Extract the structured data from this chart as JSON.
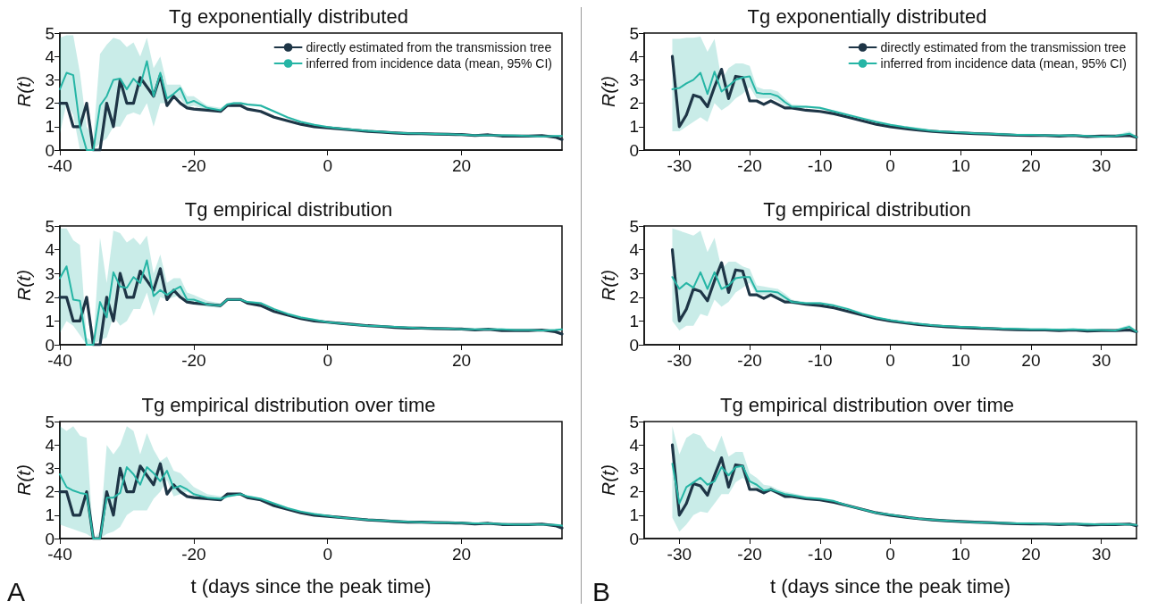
{
  "chart_data": [
    {
      "type": "line",
      "title": "Tg exponentially distributed",
      "ylabel": "R(t)",
      "legend": "top right",
      "x": [
        -40,
        -39,
        -38,
        -37,
        -36,
        -35,
        -34,
        -33,
        -32,
        -31,
        -30,
        -29,
        -28,
        -27,
        -26,
        -25,
        -24,
        -23,
        -22,
        -21,
        -20,
        -18,
        -16,
        -15,
        -14,
        -13,
        -12,
        -10,
        -8,
        -6,
        -4,
        -2,
        0,
        2,
        4,
        6,
        8,
        10,
        12,
        14,
        16,
        18,
        20,
        22,
        24,
        26,
        28,
        30,
        32,
        34,
        35
      ],
      "xlim": [
        -40,
        35
      ],
      "xticks": [
        -40,
        -20,
        0,
        20
      ],
      "ylim": [
        0,
        5
      ],
      "yticks": [
        0,
        1,
        2,
        3,
        4,
        5
      ],
      "series": [
        {
          "name": "directly estimated from the transmission tree",
          "color": "#1e3546",
          "values": [
            2,
            2,
            1,
            1,
            2,
            0,
            0,
            2,
            1,
            3,
            2,
            2,
            3.1,
            2.7,
            2.3,
            3.2,
            1.9,
            2.3,
            2.0,
            1.8,
            1.75,
            1.7,
            1.65,
            1.9,
            1.9,
            1.9,
            1.75,
            1.65,
            1.4,
            1.25,
            1.1,
            1.0,
            0.95,
            0.9,
            0.85,
            0.8,
            0.77,
            0.73,
            0.7,
            0.7,
            0.68,
            0.67,
            0.66,
            0.62,
            0.65,
            0.6,
            0.6,
            0.6,
            0.62,
            0.55,
            0.45
          ]
        },
        {
          "name": "inferred from incidence data (mean, 95% CI)",
          "color": "#26b5a5",
          "values": [
            2.6,
            3.3,
            3.2,
            1.0,
            0,
            0,
            1.9,
            2.3,
            3.0,
            3.05,
            2.6,
            3.05,
            2.75,
            3.8,
            2.3,
            3.3,
            2.2,
            2.4,
            2.65,
            2.0,
            2.1,
            1.8,
            1.7,
            1.95,
            2.0,
            2.0,
            1.95,
            1.9,
            1.65,
            1.4,
            1.2,
            1.08,
            0.98,
            0.92,
            0.87,
            0.82,
            0.78,
            0.74,
            0.72,
            0.71,
            0.69,
            0.68,
            0.66,
            0.63,
            0.63,
            0.63,
            0.62,
            0.6,
            0.58,
            0.6,
            0.6
          ],
          "lower": [
            0.7,
            2.0,
            1.5,
            0,
            0,
            0,
            0.3,
            0.5,
            1.0,
            1.0,
            1.5,
            1.6,
            1.5,
            2.0,
            1.0,
            2.0,
            2.0,
            2.2,
            2.2,
            1.8,
            1.9,
            1.7,
            1.6,
            1.9,
            1.95,
            1.95,
            1.9,
            1.85,
            1.6,
            1.35,
            1.15,
            1.03,
            0.93,
            0.87,
            0.82,
            0.77,
            0.73,
            0.69,
            0.67,
            0.66,
            0.64,
            0.63,
            0.61,
            0.58,
            0.58,
            0.58,
            0.57,
            0.55,
            0.53,
            0.55,
            0.55
          ],
          "upper": [
            4.8,
            4.9,
            4.9,
            3.3,
            1.0,
            0.5,
            4.1,
            4.5,
            4.8,
            4.7,
            4.4,
            4.6,
            4.0,
            4.8,
            3.5,
            4.0,
            2.8,
            2.8,
            2.8,
            2.3,
            2.3,
            1.9,
            1.8,
            2.0,
            2.05,
            2.05,
            2.0,
            1.95,
            1.7,
            1.45,
            1.25,
            1.13,
            1.03,
            0.97,
            0.92,
            0.87,
            0.83,
            0.79,
            0.77,
            0.76,
            0.74,
            0.73,
            0.71,
            0.68,
            0.68,
            0.68,
            0.67,
            0.65,
            0.63,
            0.65,
            0.65
          ]
        }
      ]
    },
    {
      "type": "line",
      "title": "Tg empirical distribution",
      "ylabel": "R(t)",
      "x": [
        -40,
        -39,
        -38,
        -37,
        -36,
        -35,
        -34,
        -33,
        -32,
        -31,
        -30,
        -29,
        -28,
        -27,
        -26,
        -25,
        -24,
        -23,
        -22,
        -21,
        -20,
        -18,
        -16,
        -15,
        -14,
        -13,
        -12,
        -10,
        -8,
        -6,
        -4,
        -2,
        0,
        2,
        4,
        6,
        8,
        10,
        12,
        14,
        16,
        18,
        20,
        22,
        24,
        26,
        28,
        30,
        32,
        34,
        35
      ],
      "xlim": [
        -40,
        35
      ],
      "xticks": [
        -40,
        -20,
        0,
        20
      ],
      "ylim": [
        0,
        5
      ],
      "yticks": [
        0,
        1,
        2,
        3,
        4,
        5
      ],
      "series": [
        {
          "color": "#1e3546",
          "values": [
            2,
            2,
            1,
            1,
            2,
            0,
            0,
            2,
            1,
            3,
            2,
            2,
            3.1,
            2.7,
            2.3,
            3.2,
            1.9,
            2.3,
            2.0,
            1.8,
            1.75,
            1.7,
            1.65,
            1.9,
            1.9,
            1.9,
            1.75,
            1.65,
            1.4,
            1.25,
            1.1,
            1.0,
            0.95,
            0.9,
            0.85,
            0.8,
            0.77,
            0.73,
            0.7,
            0.7,
            0.68,
            0.67,
            0.66,
            0.62,
            0.65,
            0.6,
            0.6,
            0.6,
            0.62,
            0.55,
            0.45
          ]
        },
        {
          "color": "#26b5a5",
          "values": [
            2.8,
            3.3,
            1.9,
            1.85,
            0,
            0,
            1.8,
            1.15,
            3.05,
            2.45,
            2.4,
            2.85,
            2.6,
            3.55,
            2.05,
            2.3,
            2.1,
            2.3,
            2.45,
            1.9,
            1.9,
            1.7,
            1.65,
            1.9,
            1.9,
            1.9,
            1.8,
            1.75,
            1.5,
            1.3,
            1.15,
            1.05,
            0.95,
            0.9,
            0.85,
            0.8,
            0.78,
            0.75,
            0.72,
            0.7,
            0.7,
            0.68,
            0.66,
            0.65,
            0.65,
            0.65,
            0.62,
            0.62,
            0.6,
            0.62,
            0.65
          ],
          "lower": [
            0.5,
            1.0,
            0.8,
            0.4,
            0,
            0,
            0.2,
            0.3,
            1.2,
            0.8,
            1.0,
            1.5,
            1.5,
            2.2,
            1.2,
            2.0,
            1.9,
            2.0,
            2.1,
            1.8,
            1.7,
            1.6,
            1.55,
            1.85,
            1.85,
            1.85,
            1.75,
            1.7,
            1.45,
            1.25,
            1.1,
            1.0,
            0.9,
            0.85,
            0.8,
            0.75,
            0.73,
            0.7,
            0.67,
            0.65,
            0.65,
            0.63,
            0.61,
            0.6,
            0.6,
            0.6,
            0.57,
            0.57,
            0.55,
            0.57,
            0.6
          ],
          "upper": [
            4.9,
            4.9,
            4.4,
            4.2,
            0.3,
            0.1,
            4.5,
            2.6,
            4.8,
            4.7,
            4.3,
            4.5,
            4.2,
            4.6,
            3.0,
            3.8,
            2.6,
            2.8,
            2.8,
            2.2,
            2.1,
            1.85,
            1.75,
            1.95,
            1.95,
            1.95,
            1.85,
            1.8,
            1.55,
            1.35,
            1.2,
            1.1,
            1.0,
            0.95,
            0.9,
            0.85,
            0.83,
            0.8,
            0.77,
            0.75,
            0.75,
            0.73,
            0.71,
            0.7,
            0.7,
            0.7,
            0.67,
            0.67,
            0.65,
            0.67,
            0.7
          ]
        }
      ]
    },
    {
      "type": "line",
      "title": "Tg empirical distribution over time",
      "ylabel": "R(t)",
      "xlabel": "t (days since the peak time)",
      "annotations": [
        "A"
      ],
      "x": [
        -40,
        -39,
        -38,
        -37,
        -36,
        -35,
        -34,
        -33,
        -32,
        -31,
        -30,
        -29,
        -28,
        -27,
        -26,
        -25,
        -24,
        -23,
        -22,
        -21,
        -20,
        -18,
        -16,
        -15,
        -14,
        -13,
        -12,
        -10,
        -8,
        -6,
        -4,
        -2,
        0,
        2,
        4,
        6,
        8,
        10,
        12,
        14,
        16,
        18,
        20,
        22,
        24,
        26,
        28,
        30,
        32,
        34,
        35
      ],
      "xlim": [
        -40,
        35
      ],
      "xticks": [
        -40,
        -20,
        0,
        20
      ],
      "ylim": [
        0,
        5
      ],
      "yticks": [
        0,
        1,
        2,
        3,
        4,
        5
      ],
      "series": [
        {
          "color": "#1e3546",
          "values": [
            2,
            2,
            1,
            1,
            2,
            0,
            0,
            2,
            1,
            3,
            2,
            2,
            3.1,
            2.7,
            2.3,
            3.2,
            1.9,
            2.3,
            2.0,
            1.8,
            1.75,
            1.7,
            1.65,
            1.9,
            1.9,
            1.9,
            1.75,
            1.65,
            1.4,
            1.25,
            1.1,
            1.0,
            0.95,
            0.9,
            0.85,
            0.8,
            0.77,
            0.73,
            0.7,
            0.7,
            0.68,
            0.67,
            0.66,
            0.62,
            0.65,
            0.6,
            0.6,
            0.6,
            0.62,
            0.55,
            0.45
          ]
        },
        {
          "color": "#26b5a5",
          "values": [
            2.75,
            2.2,
            2.05,
            1.95,
            1.9,
            0,
            0,
            1.75,
            1.75,
            1.95,
            3.05,
            2.75,
            2.3,
            3.05,
            2.8,
            2.45,
            2.9,
            2.15,
            2.25,
            2.1,
            1.9,
            1.75,
            1.7,
            1.8,
            1.85,
            1.9,
            1.8,
            1.7,
            1.5,
            1.3,
            1.15,
            1.05,
            0.97,
            0.9,
            0.85,
            0.8,
            0.77,
            0.74,
            0.72,
            0.7,
            0.69,
            0.68,
            0.67,
            0.65,
            0.65,
            0.62,
            0.6,
            0.6,
            0.6,
            0.58,
            0.55
          ],
          "lower": [
            0.6,
            0.5,
            0.4,
            0.3,
            0.2,
            0,
            0,
            0.2,
            0.3,
            0.5,
            1.0,
            1.2,
            1.2,
            1.2,
            1.7,
            2.0,
            2.5,
            1.8,
            1.9,
            2.0,
            1.8,
            1.65,
            1.6,
            1.75,
            1.8,
            1.85,
            1.75,
            1.65,
            1.45,
            1.25,
            1.1,
            1.0,
            0.92,
            0.85,
            0.8,
            0.75,
            0.72,
            0.69,
            0.67,
            0.65,
            0.64,
            0.63,
            0.62,
            0.6,
            0.6,
            0.57,
            0.55,
            0.55,
            0.55,
            0.53,
            0.5
          ],
          "upper": [
            4.8,
            4.6,
            4.8,
            4.4,
            4.3,
            0,
            0.3,
            4.0,
            3.6,
            4.0,
            4.8,
            4.6,
            3.6,
            4.5,
            3.8,
            3.3,
            3.5,
            2.9,
            2.8,
            2.5,
            2.2,
            1.9,
            1.8,
            1.85,
            1.9,
            1.95,
            1.85,
            1.75,
            1.55,
            1.35,
            1.2,
            1.1,
            1.02,
            0.95,
            0.9,
            0.85,
            0.82,
            0.79,
            0.77,
            0.75,
            0.74,
            0.73,
            0.72,
            0.7,
            0.7,
            0.67,
            0.65,
            0.65,
            0.65,
            0.63,
            0.6
          ]
        }
      ]
    },
    {
      "type": "line",
      "title": "Tg exponentially distributed",
      "ylabel": "R(t)",
      "legend": "top right",
      "x": [
        -31,
        -30,
        -29,
        -28,
        -27,
        -26,
        -25,
        -24,
        -23,
        -22,
        -21,
        -20,
        -19,
        -18,
        -17,
        -16,
        -15,
        -14,
        -12,
        -10,
        -8,
        -6,
        -4,
        -2,
        0,
        2,
        4,
        6,
        8,
        10,
        12,
        14,
        16,
        18,
        20,
        22,
        24,
        26,
        28,
        30,
        32,
        34,
        35
      ],
      "xlim": [
        -35,
        35
      ],
      "xticks": [
        -30,
        -20,
        -10,
        0,
        10,
        20,
        30
      ],
      "ylim": [
        0,
        5
      ],
      "yticks": [
        0,
        1,
        2,
        3,
        4,
        5
      ],
      "series": [
        {
          "name": "directly estimated from the transmission tree",
          "color": "#1e3546",
          "values": [
            4.0,
            1.0,
            1.5,
            2.35,
            2.25,
            1.85,
            2.7,
            3.45,
            2.2,
            3.15,
            3.1,
            2.1,
            2.1,
            1.95,
            2.1,
            1.95,
            1.8,
            1.8,
            1.7,
            1.65,
            1.55,
            1.4,
            1.25,
            1.1,
            1.0,
            0.92,
            0.85,
            0.8,
            0.76,
            0.73,
            0.7,
            0.68,
            0.65,
            0.63,
            0.62,
            0.62,
            0.6,
            0.62,
            0.58,
            0.6,
            0.6,
            0.62,
            0.55
          ]
        },
        {
          "name": "inferred from incidence data (mean, 95% CI)",
          "color": "#26b5a5",
          "values": [
            2.6,
            2.65,
            2.85,
            3.0,
            3.3,
            2.4,
            3.35,
            2.5,
            2.75,
            3.0,
            3.1,
            3.15,
            2.45,
            2.4,
            2.4,
            2.3,
            2.05,
            1.85,
            1.85,
            1.8,
            1.65,
            1.5,
            1.35,
            1.2,
            1.08,
            0.98,
            0.9,
            0.82,
            0.78,
            0.75,
            0.72,
            0.7,
            0.68,
            0.65,
            0.65,
            0.63,
            0.62,
            0.63,
            0.6,
            0.57,
            0.6,
            0.7,
            0.55
          ],
          "lower": [
            0.8,
            0.8,
            1.0,
            1.2,
            1.4,
            1.2,
            2.0,
            1.7,
            1.9,
            2.2,
            2.4,
            2.7,
            2.2,
            2.2,
            2.2,
            2.1,
            1.9,
            1.75,
            1.8,
            1.75,
            1.6,
            1.45,
            1.3,
            1.15,
            1.03,
            0.93,
            0.85,
            0.77,
            0.73,
            0.7,
            0.67,
            0.65,
            0.63,
            0.6,
            0.6,
            0.58,
            0.57,
            0.58,
            0.55,
            0.52,
            0.55,
            0.6,
            0.5
          ],
          "upper": [
            4.75,
            4.75,
            4.8,
            4.8,
            4.85,
            4.2,
            4.75,
            3.0,
            3.5,
            3.7,
            3.7,
            3.6,
            2.7,
            2.6,
            2.6,
            2.5,
            2.2,
            1.95,
            1.9,
            1.85,
            1.7,
            1.55,
            1.4,
            1.25,
            1.13,
            1.03,
            0.95,
            0.87,
            0.83,
            0.8,
            0.77,
            0.75,
            0.73,
            0.7,
            0.7,
            0.68,
            0.67,
            0.68,
            0.65,
            0.62,
            0.65,
            0.8,
            0.6
          ]
        }
      ]
    },
    {
      "type": "line",
      "title": "Tg empirical distribution",
      "ylabel": "R(t)",
      "x": [
        -31,
        -30,
        -29,
        -28,
        -27,
        -26,
        -25,
        -24,
        -23,
        -22,
        -21,
        -20,
        -19,
        -18,
        -17,
        -16,
        -15,
        -14,
        -12,
        -10,
        -8,
        -6,
        -4,
        -2,
        0,
        2,
        4,
        6,
        8,
        10,
        12,
        14,
        16,
        18,
        20,
        22,
        24,
        26,
        28,
        30,
        32,
        34,
        35
      ],
      "xlim": [
        -35,
        35
      ],
      "xticks": [
        -30,
        -20,
        -10,
        0,
        10,
        20,
        30
      ],
      "ylim": [
        0,
        5
      ],
      "yticks": [
        0,
        1,
        2,
        3,
        4,
        5
      ],
      "series": [
        {
          "color": "#1e3546",
          "values": [
            4.0,
            1.0,
            1.5,
            2.35,
            2.25,
            1.85,
            2.7,
            3.45,
            2.2,
            3.15,
            3.1,
            2.1,
            2.1,
            1.95,
            2.1,
            1.95,
            1.8,
            1.8,
            1.7,
            1.65,
            1.55,
            1.4,
            1.25,
            1.1,
            1.0,
            0.92,
            0.85,
            0.8,
            0.76,
            0.73,
            0.7,
            0.68,
            0.65,
            0.63,
            0.62,
            0.62,
            0.6,
            0.62,
            0.58,
            0.6,
            0.6,
            0.62,
            0.55
          ]
        },
        {
          "color": "#26b5a5",
          "values": [
            2.85,
            2.35,
            2.6,
            2.4,
            3.05,
            2.35,
            3.05,
            2.35,
            2.5,
            2.8,
            2.85,
            2.85,
            2.25,
            2.25,
            2.25,
            2.2,
            2.0,
            1.8,
            1.75,
            1.75,
            1.65,
            1.5,
            1.3,
            1.15,
            1.03,
            0.95,
            0.88,
            0.82,
            0.78,
            0.75,
            0.73,
            0.7,
            0.68,
            0.67,
            0.65,
            0.65,
            0.63,
            0.65,
            0.62,
            0.62,
            0.6,
            0.75,
            0.55
          ],
          "lower": [
            1.0,
            0.6,
            0.8,
            0.8,
            1.3,
            1.2,
            1.9,
            1.6,
            1.8,
            2.2,
            2.4,
            2.6,
            2.1,
            2.1,
            2.1,
            2.0,
            1.85,
            1.7,
            1.7,
            1.7,
            1.6,
            1.45,
            1.25,
            1.1,
            0.98,
            0.9,
            0.83,
            0.77,
            0.73,
            0.7,
            0.68,
            0.65,
            0.63,
            0.62,
            0.6,
            0.6,
            0.58,
            0.6,
            0.57,
            0.57,
            0.55,
            0.65,
            0.5
          ],
          "upper": [
            4.9,
            4.8,
            4.7,
            4.6,
            4.8,
            3.9,
            4.5,
            3.2,
            3.5,
            3.5,
            3.3,
            3.2,
            2.5,
            2.45,
            2.4,
            2.35,
            2.15,
            1.9,
            1.8,
            1.8,
            1.7,
            1.55,
            1.35,
            1.2,
            1.08,
            1.0,
            0.93,
            0.87,
            0.83,
            0.8,
            0.78,
            0.75,
            0.73,
            0.72,
            0.7,
            0.7,
            0.68,
            0.7,
            0.67,
            0.67,
            0.65,
            0.85,
            0.6
          ]
        }
      ]
    },
    {
      "type": "line",
      "title": "Tg empirical distribution over time",
      "ylabel": "R(t)",
      "xlabel": "t (days since the peak time)",
      "annotations": [
        "B"
      ],
      "x": [
        -31,
        -30,
        -29,
        -28,
        -27,
        -26,
        -25,
        -24,
        -23,
        -22,
        -21,
        -20,
        -19,
        -18,
        -17,
        -16,
        -15,
        -14,
        -12,
        -10,
        -8,
        -6,
        -4,
        -2,
        0,
        2,
        4,
        6,
        8,
        10,
        12,
        14,
        16,
        18,
        20,
        22,
        24,
        26,
        28,
        30,
        32,
        34,
        35
      ],
      "xlim": [
        -35,
        35
      ],
      "xticks": [
        -30,
        -20,
        -10,
        0,
        10,
        20,
        30
      ],
      "ylim": [
        0,
        5
      ],
      "yticks": [
        0,
        1,
        2,
        3,
        4,
        5
      ],
      "series": [
        {
          "color": "#1e3546",
          "values": [
            4.0,
            1.0,
            1.5,
            2.35,
            2.25,
            1.85,
            2.7,
            3.45,
            2.2,
            3.15,
            3.1,
            2.1,
            2.1,
            1.95,
            2.1,
            1.95,
            1.8,
            1.8,
            1.7,
            1.65,
            1.55,
            1.4,
            1.25,
            1.1,
            1.0,
            0.92,
            0.85,
            0.8,
            0.76,
            0.73,
            0.7,
            0.68,
            0.65,
            0.63,
            0.62,
            0.62,
            0.6,
            0.62,
            0.58,
            0.6,
            0.6,
            0.62,
            0.55
          ]
        },
        {
          "color": "#26b5a5",
          "values": [
            3.2,
            1.5,
            2.2,
            2.4,
            2.6,
            2.3,
            2.45,
            3.05,
            2.7,
            3.05,
            3.1,
            2.45,
            2.3,
            2.05,
            2.1,
            2.0,
            1.9,
            1.85,
            1.75,
            1.7,
            1.6,
            1.4,
            1.25,
            1.1,
            1.02,
            0.93,
            0.85,
            0.8,
            0.76,
            0.73,
            0.7,
            0.68,
            0.67,
            0.65,
            0.65,
            0.63,
            0.62,
            0.63,
            0.62,
            0.6,
            0.62,
            0.6,
            0.58
          ],
          "lower": [
            0.9,
            0.3,
            0.6,
            1.0,
            1.15,
            1.1,
            1.5,
            1.9,
            1.9,
            2.4,
            2.6,
            2.3,
            2.1,
            2.0,
            2.0,
            1.9,
            1.8,
            1.75,
            1.7,
            1.65,
            1.55,
            1.35,
            1.2,
            1.05,
            0.97,
            0.88,
            0.8,
            0.75,
            0.71,
            0.68,
            0.65,
            0.63,
            0.62,
            0.6,
            0.6,
            0.58,
            0.57,
            0.58,
            0.57,
            0.55,
            0.57,
            0.55,
            0.53
          ],
          "upper": [
            4.8,
            3.6,
            4.3,
            4.5,
            4.4,
            3.9,
            3.7,
            4.4,
            3.5,
            3.7,
            3.7,
            2.8,
            2.6,
            2.3,
            2.25,
            2.1,
            2.0,
            1.95,
            1.8,
            1.75,
            1.65,
            1.45,
            1.3,
            1.15,
            1.07,
            0.98,
            0.9,
            0.85,
            0.81,
            0.78,
            0.75,
            0.73,
            0.72,
            0.7,
            0.7,
            0.68,
            0.67,
            0.68,
            0.67,
            0.65,
            0.67,
            0.65,
            0.63
          ]
        }
      ]
    }
  ]
}
